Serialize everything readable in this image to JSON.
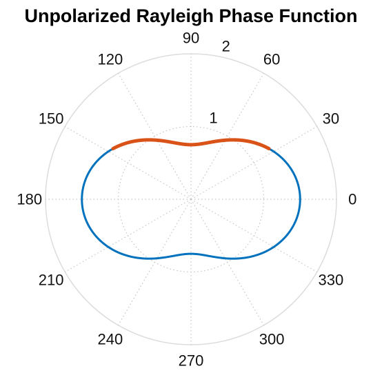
{
  "chart_data": {
    "type": "line",
    "coordinate_system": "polar",
    "title": "Unpolarized Rayleigh Phase Function",
    "theta_unit": "degrees",
    "theta_zero_location": "right",
    "theta_direction": "counterclockwise",
    "r_lim": [
      0,
      2
    ],
    "r_ticks": [
      1,
      2
    ],
    "r_tick_labels": [
      "1",
      "2"
    ],
    "theta_ticks": [
      0,
      30,
      60,
      90,
      120,
      150,
      180,
      210,
      240,
      270,
      300,
      330
    ],
    "theta_tick_labels": [
      "0",
      "30",
      "60",
      "90",
      "120",
      "150",
      "180",
      "210",
      "240",
      "270",
      "300",
      "330"
    ],
    "grid": true,
    "series": [
      {
        "color": "#0072BD",
        "function": "0.75*(1+cos^2(theta))",
        "theta_range": [
          -150,
          210
        ],
        "line": "solid"
      },
      {
        "color": "#D95319",
        "function": "0.75*(1+cos^2(theta))",
        "theta_range": [
          33,
          147
        ],
        "line": "solid"
      }
    ]
  }
}
